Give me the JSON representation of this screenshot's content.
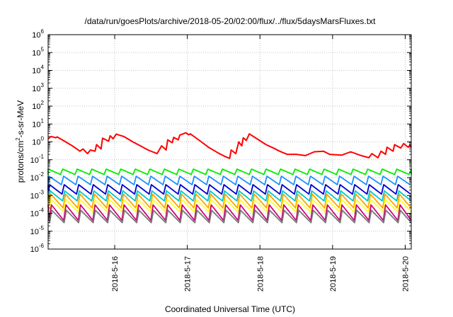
{
  "chart_data": {
    "type": "line",
    "title": "/data/run/goesPlots/archive/2018-05-20/02:00/flux/../flux/5daysMarsFluxes.txt",
    "xlabel": "Coordinated Universal Time (UTC)",
    "ylabel": "protons/cm^2-s-sr-MeV",
    "ylabel_parts": {
      "pre": "protons/cm",
      "sup": "2",
      "post": "-s-sr-MeV"
    },
    "x_range": [
      "2018-05-15 02:00",
      "2018-05-20 02:00"
    ],
    "x_ticks": [
      {
        "date": "2018-05-16 00:00",
        "label": "2018-5-16"
      },
      {
        "date": "2018-05-17 00:00",
        "label": "2018-5-17"
      },
      {
        "date": "2018-05-18 00:00",
        "label": "2018-5-18"
      },
      {
        "date": "2018-05-19 00:00",
        "label": "2018-5-19"
      },
      {
        "date": "2018-05-20 00:00",
        "label": "2018-5-20"
      }
    ],
    "y_scale": "log",
    "ylim": [
      1e-06,
      1000000.0
    ],
    "y_tick_exponents": [
      -6,
      -5,
      -4,
      -3,
      -2,
      -1,
      0,
      1,
      2,
      3,
      4,
      5,
      6
    ],
    "grid": true,
    "legend": "none",
    "series": [
      {
        "color": "#ff0000",
        "points": [
          [
            "2018-05-15 02:00",
            1.5
          ],
          [
            "2018-05-15 03:00",
            2.0
          ],
          [
            "2018-05-15 04:30",
            1.7
          ],
          [
            "2018-05-15 05:00",
            1.9
          ],
          [
            "2018-05-15 07:00",
            1.2
          ],
          [
            "2018-05-15 10:00",
            0.6
          ],
          [
            "2018-05-15 12:30",
            0.3
          ],
          [
            "2018-05-15 13:30",
            0.4
          ],
          [
            "2018-05-15 15:00",
            0.22
          ],
          [
            "2018-05-15 16:00",
            0.35
          ],
          [
            "2018-05-15 17:30",
            0.3
          ],
          [
            "2018-05-15 18:00",
            0.7
          ],
          [
            "2018-05-15 19:30",
            0.4
          ],
          [
            "2018-05-15 20:00",
            1.6
          ],
          [
            "2018-05-15 22:00",
            1.1
          ],
          [
            "2018-05-15 22:30",
            2.2
          ],
          [
            "2018-05-15 23:30",
            1.5
          ],
          [
            "2018-05-16 00:30",
            2.7
          ],
          [
            "2018-05-16 03:00",
            2.0
          ],
          [
            "2018-05-16 06:00",
            1.0
          ],
          [
            "2018-05-16 08:30",
            0.6
          ],
          [
            "2018-05-16 11:00",
            0.35
          ],
          [
            "2018-05-16 14:00",
            0.22
          ],
          [
            "2018-05-16 15:30",
            0.6
          ],
          [
            "2018-05-16 17:00",
            0.35
          ],
          [
            "2018-05-16 17:30",
            1.3
          ],
          [
            "2018-05-16 19:00",
            0.9
          ],
          [
            "2018-05-16 19:30",
            1.8
          ],
          [
            "2018-05-16 21:00",
            1.3
          ],
          [
            "2018-05-16 21:30",
            2.4
          ],
          [
            "2018-05-16 23:30",
            3.2
          ],
          [
            "2018-05-17 00:30",
            2.5
          ],
          [
            "2018-05-17 01:00",
            2.8
          ],
          [
            "2018-05-17 04:00",
            1.2
          ],
          [
            "2018-05-17 07:00",
            0.5
          ],
          [
            "2018-05-17 10:00",
            0.25
          ],
          [
            "2018-05-17 12:30",
            0.15
          ],
          [
            "2018-05-17 14:00",
            0.12
          ],
          [
            "2018-05-17 14:30",
            0.35
          ],
          [
            "2018-05-17 16:00",
            0.22
          ],
          [
            "2018-05-17 17:00",
            1.0
          ],
          [
            "2018-05-17 18:00",
            0.6
          ],
          [
            "2018-05-17 18:30",
            1.7
          ],
          [
            "2018-05-17 19:30",
            1.2
          ],
          [
            "2018-05-17 20:30",
            2.8
          ],
          [
            "2018-05-17 23:00",
            1.5
          ],
          [
            "2018-05-18 02:00",
            0.7
          ],
          [
            "2018-05-18 04:30",
            0.45
          ],
          [
            "2018-05-18 06:30",
            0.3
          ],
          [
            "2018-05-18 09:00",
            0.2
          ],
          [
            "2018-05-18 12:00",
            0.2
          ],
          [
            "2018-05-18 15:00",
            0.17
          ],
          [
            "2018-05-18 18:00",
            0.28
          ],
          [
            "2018-05-18 21:00",
            0.3
          ],
          [
            "2018-05-18 23:00",
            0.2
          ],
          [
            "2018-05-19 03:00",
            0.18
          ],
          [
            "2018-05-19 06:00",
            0.28
          ],
          [
            "2018-05-19 09:00",
            0.18
          ],
          [
            "2018-05-19 12:00",
            0.13
          ],
          [
            "2018-05-19 13:00",
            0.22
          ],
          [
            "2018-05-19 15:00",
            0.13
          ],
          [
            "2018-05-19 16:00",
            0.3
          ],
          [
            "2018-05-19 17:30",
            0.2
          ],
          [
            "2018-05-19 18:00",
            0.5
          ],
          [
            "2018-05-19 20:00",
            0.3
          ],
          [
            "2018-05-19 20:30",
            0.7
          ],
          [
            "2018-05-19 22:30",
            0.45
          ],
          [
            "2018-05-19 23:30",
            0.8
          ],
          [
            "2018-05-20 01:00",
            0.5
          ],
          [
            "2018-05-20 01:30",
            0.65
          ],
          [
            "2018-05-20 02:00",
            0.5
          ]
        ]
      },
      {
        "color": "#00ee00",
        "pattern": {
          "period_hours": 4.8,
          "phase_hours": 0,
          "high": 0.03,
          "low": 0.015
        }
      },
      {
        "color": "#1e90ff",
        "pattern": {
          "period_hours": 4.8,
          "phase_hours": 0.3,
          "high": 0.012,
          "low": 0.004
        }
      },
      {
        "color": "#0000cc",
        "pattern": {
          "period_hours": 4.8,
          "phase_hours": 0.5,
          "high": 0.004,
          "low": 0.0012
        }
      },
      {
        "color": "#00c8c8",
        "pattern": {
          "period_hours": 4.8,
          "phase_hours": 0.7,
          "high": 0.0018,
          "low": 0.0005
        }
      },
      {
        "color": "#ffa500",
        "pattern": {
          "period_hours": 4.8,
          "phase_hours": 0.9,
          "high": 0.0012,
          "low": 0.0002
        }
      },
      {
        "color": "#ffff33",
        "pattern": {
          "period_hours": 4.8,
          "phase_hours": 1.0,
          "high": 0.0006,
          "low": 0.00012
        }
      },
      {
        "color": "#cc0077",
        "pattern": {
          "period_hours": 4.8,
          "phase_hours": 1.1,
          "high": 0.0003,
          "low": 4e-05
        }
      },
      {
        "color": "#777777",
        "pattern": {
          "period_hours": 4.8,
          "phase_hours": 1.2,
          "high": 0.00015,
          "low": 3e-05
        }
      }
    ]
  }
}
